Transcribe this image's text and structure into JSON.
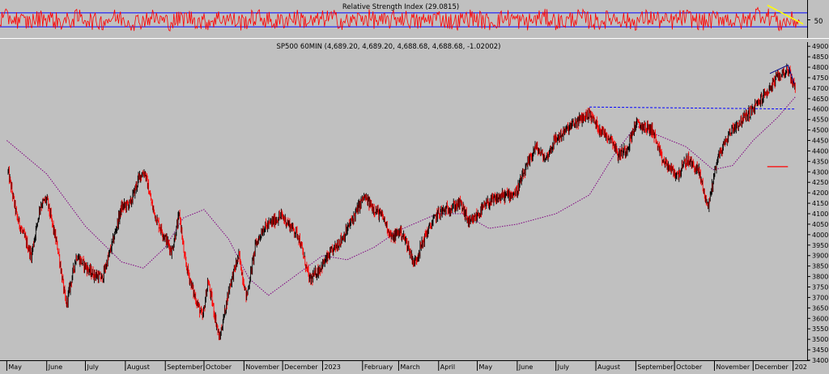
{
  "rsi_panel": {
    "title": "Relative Strength Index (29.0815)",
    "tick_label": "50",
    "upper_level": 70,
    "lower_level": 30,
    "line_color": "#ff0000",
    "band_color": "#0000ff",
    "trendline_color": "#ffff00"
  },
  "chart_data": {
    "type": "line",
    "title": "SP500 60MIN (4,689.20, 4,689.20, 4,688.68, 4,688.68, -1.02002)",
    "y_axis_side": "right",
    "ylim": [
      3400,
      4920
    ],
    "y_ticks": [
      3400,
      3450,
      3500,
      3550,
      3600,
      3650,
      3700,
      3750,
      3800,
      3850,
      3900,
      3950,
      4000,
      4050,
      4100,
      4150,
      4200,
      4250,
      4300,
      4350,
      4400,
      4450,
      4500,
      4550,
      4600,
      4650,
      4700,
      4750,
      4800,
      4850,
      4900
    ],
    "x_ticks": [
      "May",
      "June",
      "July",
      "August",
      "September",
      "October",
      "November",
      "December",
      "2023",
      "February",
      "March",
      "April",
      "May",
      "June",
      "July",
      "August",
      "September",
      "October",
      "November",
      "December",
      "202"
    ],
    "grid": false,
    "series": [
      {
        "kind": "price",
        "color_up": "#000000",
        "color_down": "#ff0000",
        "x": [
          "2022-05-02",
          "2022-05-09",
          "2022-05-20",
          "2022-05-27",
          "2022-06-01",
          "2022-06-10",
          "2022-06-16",
          "2022-06-24",
          "2022-07-05",
          "2022-07-14",
          "2022-07-22",
          "2022-07-29",
          "2022-08-05",
          "2022-08-12",
          "2022-08-16",
          "2022-08-22",
          "2022-08-26",
          "2022-09-06",
          "2022-09-12",
          "2022-09-16",
          "2022-09-23",
          "2022-09-30",
          "2022-10-04",
          "2022-10-13",
          "2022-10-21",
          "2022-10-28",
          "2022-11-03",
          "2022-11-10",
          "2022-11-16",
          "2022-11-30",
          "2022-12-13",
          "2022-12-22",
          "2022-12-30",
          "2023-01-06",
          "2023-01-18",
          "2023-02-02",
          "2023-02-09",
          "2023-02-17",
          "2023-02-24",
          "2023-03-02",
          "2023-03-08",
          "2023-03-13",
          "2023-03-22",
          "2023-03-31",
          "2023-04-18",
          "2023-04-25",
          "2023-05-09",
          "2023-05-19",
          "2023-05-31",
          "2023-06-15",
          "2023-06-23",
          "2023-06-30",
          "2023-07-13",
          "2023-07-27",
          "2023-08-03",
          "2023-08-14",
          "2023-08-18",
          "2023-08-25",
          "2023-09-01",
          "2023-09-14",
          "2023-09-21",
          "2023-10-03",
          "2023-10-11",
          "2023-10-20",
          "2023-10-27",
          "2023-11-03",
          "2023-11-14",
          "2023-11-21",
          "2023-12-01",
          "2023-12-14",
          "2023-12-21",
          "2023-12-28",
          "2024-01-03"
        ],
        "values": [
          4300,
          4080,
          3900,
          4140,
          4170,
          3920,
          3660,
          3900,
          3820,
          3790,
          3960,
          4130,
          4150,
          4280,
          4300,
          4130,
          4060,
          3920,
          4100,
          3880,
          3720,
          3600,
          3780,
          3500,
          3760,
          3900,
          3700,
          3950,
          4030,
          4090,
          4000,
          3780,
          3840,
          3900,
          4000,
          4180,
          4130,
          4080,
          3980,
          4020,
          3950,
          3860,
          4000,
          4100,
          4150,
          4050,
          4150,
          4180,
          4200,
          4420,
          4360,
          4450,
          4520,
          4580,
          4510,
          4450,
          4380,
          4410,
          4530,
          4500,
          4360,
          4280,
          4360,
          4300,
          4130,
          4360,
          4500,
          4540,
          4600,
          4700,
          4760,
          4790,
          4690
        ]
      },
      {
        "kind": "moving-average",
        "color": "#800080",
        "x": [
          "2022-05-01",
          "2022-06-01",
          "2022-07-01",
          "2022-07-29",
          "2022-08-15",
          "2022-09-01",
          "2022-09-15",
          "2022-10-01",
          "2022-10-20",
          "2022-11-05",
          "2022-11-20",
          "2022-12-10",
          "2023-01-01",
          "2023-01-20",
          "2023-02-10",
          "2023-03-01",
          "2023-03-31",
          "2023-04-20",
          "2023-05-10",
          "2023-06-01",
          "2023-07-01",
          "2023-07-27",
          "2023-08-15",
          "2023-09-01",
          "2023-09-20",
          "2023-10-10",
          "2023-10-31",
          "2023-11-15",
          "2023-12-01",
          "2023-12-20",
          "2024-01-03"
        ],
        "values": [
          4450,
          4290,
          4040,
          3870,
          3840,
          3940,
          4080,
          4120,
          3980,
          3790,
          3710,
          3800,
          3900,
          3880,
          3940,
          4020,
          4100,
          4100,
          4030,
          4050,
          4100,
          4190,
          4380,
          4520,
          4470,
          4420,
          4310,
          4330,
          4450,
          4560,
          4660
        ]
      },
      {
        "kind": "moving-average",
        "color": "#0000ff",
        "style": "dashed",
        "x": [
          "2023-07-27",
          "2024-01-03"
        ],
        "values": [
          4610,
          4600
        ]
      },
      {
        "kind": "level-marker",
        "color": "#ff0000",
        "x": [
          "2023-12-12",
          "2023-12-28"
        ],
        "values": [
          4325,
          4325
        ]
      }
    ]
  }
}
